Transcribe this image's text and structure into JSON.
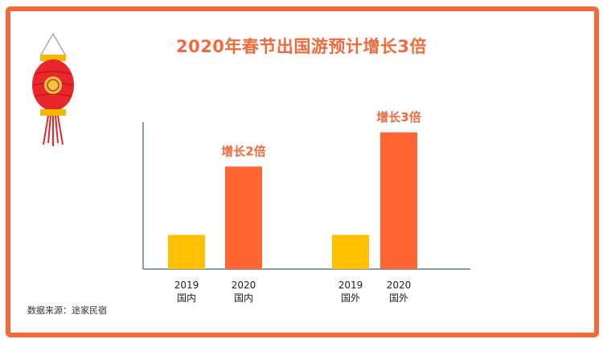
{
  "title": "2020年春节出国游预计增长3倍",
  "source_note": "数据来源：途家民宿",
  "colors": {
    "frame": "#f26a3b",
    "bar_2019": "#ffc000",
    "bar_2020": "#ff6633",
    "annotation": "#f26a3b",
    "axis": "#8a9bb8"
  },
  "icons": [
    "lantern-icon"
  ],
  "chart_data": {
    "type": "bar",
    "title": "2020年春节出国游预计增长3倍",
    "categories": [
      {
        "year": "2019",
        "label": "国内"
      },
      {
        "year": "2020",
        "label": "国内"
      },
      {
        "year": "2019",
        "label": "国外"
      },
      {
        "year": "2020",
        "label": "国外"
      }
    ],
    "values": [
      1,
      3,
      1,
      4
    ],
    "bar_colors": [
      "#ffc000",
      "#ff6633",
      "#ffc000",
      "#ff6633"
    ],
    "annotations": [
      {
        "category_index": 1,
        "text": "增长2倍"
      },
      {
        "category_index": 3,
        "text": "增长3倍"
      }
    ],
    "ylim": [
      0,
      4.3
    ],
    "y_ticks_shown": false,
    "grid": false,
    "legend": "none"
  }
}
